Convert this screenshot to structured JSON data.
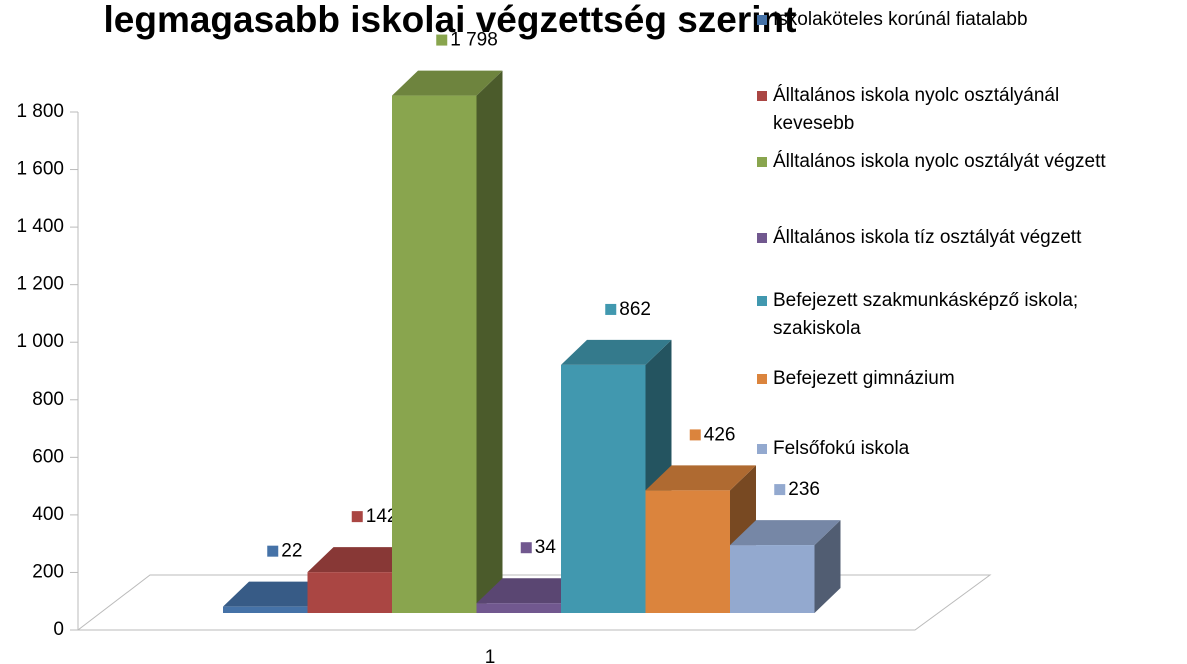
{
  "chart_data": {
    "type": "bar3d",
    "title": "legmagasabb iskolai végzettség szerint",
    "categories": [
      "1"
    ],
    "series": [
      {
        "name": "Iskolaköteles korúnál fiatalabb",
        "color": "#4572a7",
        "values": [
          22
        ],
        "value_labels": [
          "22"
        ]
      },
      {
        "name": "Álltalános iskola nyolc osztályánál kevesebb",
        "color": "#aa4643",
        "values": [
          142
        ],
        "value_labels": [
          "142"
        ]
      },
      {
        "name": "Álltalános iskola nyolc osztályát végzett",
        "color": "#89a54e",
        "values": [
          1798
        ],
        "value_labels": [
          "1 798"
        ]
      },
      {
        "name": "Álltalános iskola tíz osztályát végzett",
        "color": "#71588f",
        "values": [
          34
        ],
        "value_labels": [
          "34"
        ]
      },
      {
        "name": "Befejezett szakmunkásképző iskola; szakiskola",
        "color": "#4198af",
        "values": [
          862
        ],
        "value_labels": [
          "862"
        ]
      },
      {
        "name": "Befejezett gimnázium",
        "color": "#db843d",
        "values": [
          426
        ],
        "value_labels": [
          "426"
        ]
      },
      {
        "name": "Felsőfokú iskola",
        "color": "#93a9cf",
        "values": [
          236
        ],
        "value_labels": [
          "236"
        ]
      }
    ],
    "ylim": [
      0,
      1800
    ],
    "yticks": [
      0,
      200,
      400,
      600,
      800,
      {
        "value": 1000,
        "label": "1 000"
      },
      {
        "value": 1200,
        "label": "1 200"
      },
      {
        "value": 1400,
        "label": "1 400"
      },
      {
        "value": 1600,
        "label": "1 600"
      },
      {
        "value": 1800,
        "label": "1 800"
      }
    ],
    "legend": "right"
  }
}
